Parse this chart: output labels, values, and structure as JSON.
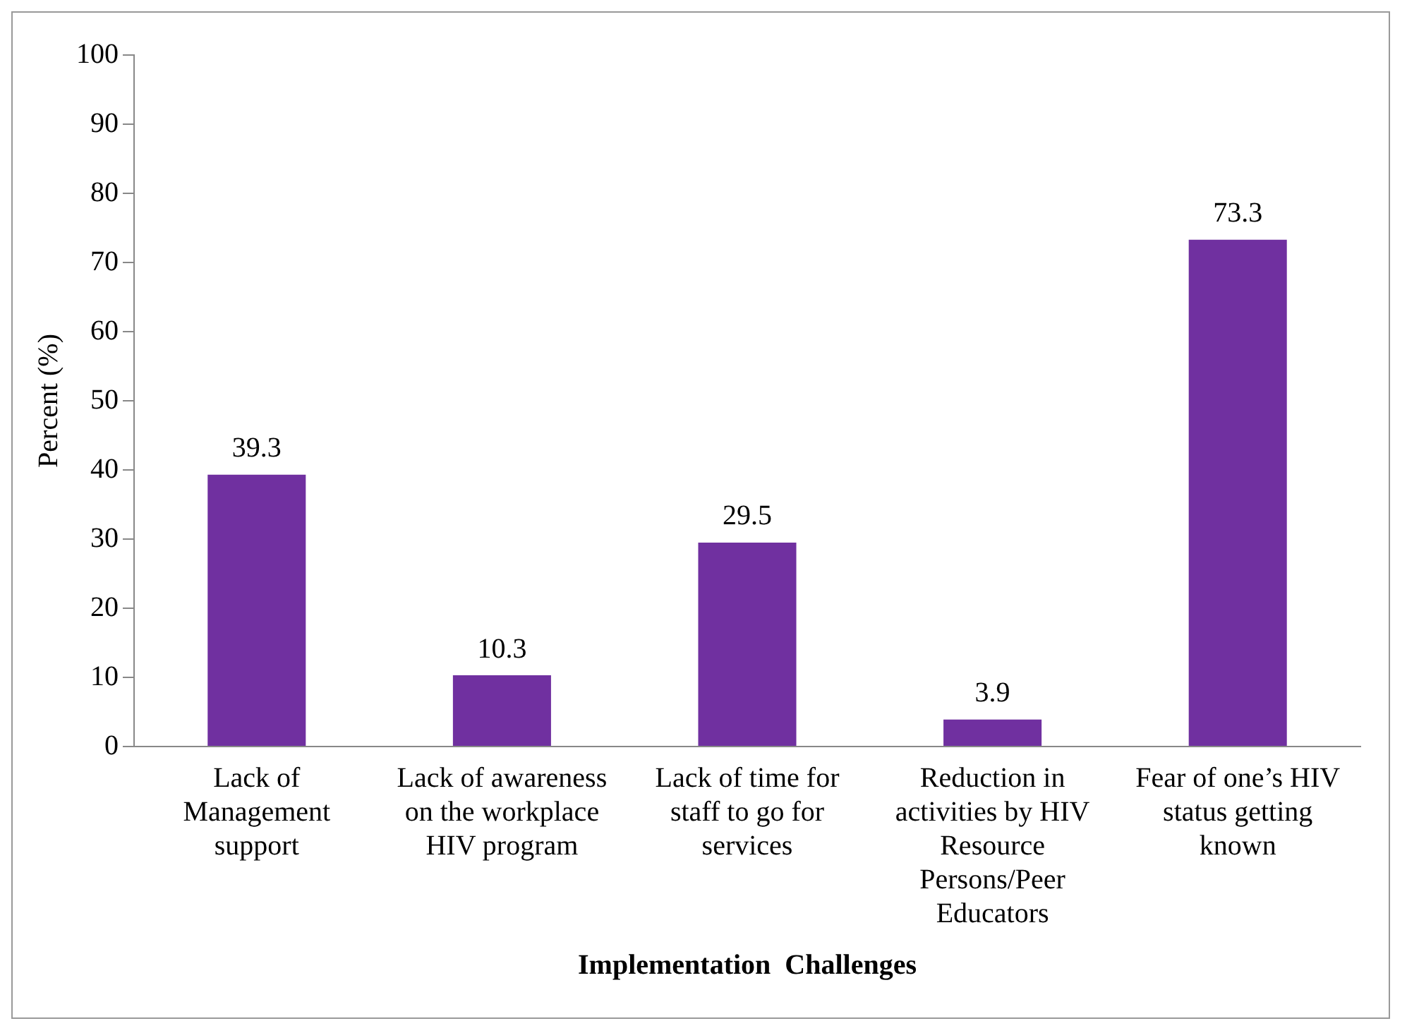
{
  "chart_data": {
    "type": "bar",
    "xlabel": "Implementation  Challenges",
    "ylabel": "Percent (%)",
    "categories": [
      "Lack of Management support",
      "Lack of awareness on the workplace HIV program",
      "Lack of time for staff to go for services",
      "Reduction in activities by HIV Resource Persons/Peer Educators",
      "Fear of one’s HIV status getting known"
    ],
    "values": [
      39.3,
      10.3,
      29.5,
      3.9,
      73.3
    ],
    "color": "#7030a0",
    "ylim": [
      0,
      100
    ],
    "yticks": [
      0,
      10,
      20,
      30,
      40,
      50,
      60,
      70,
      80,
      90,
      100
    ],
    "grid": false,
    "legend": false,
    "data_labels": true
  }
}
